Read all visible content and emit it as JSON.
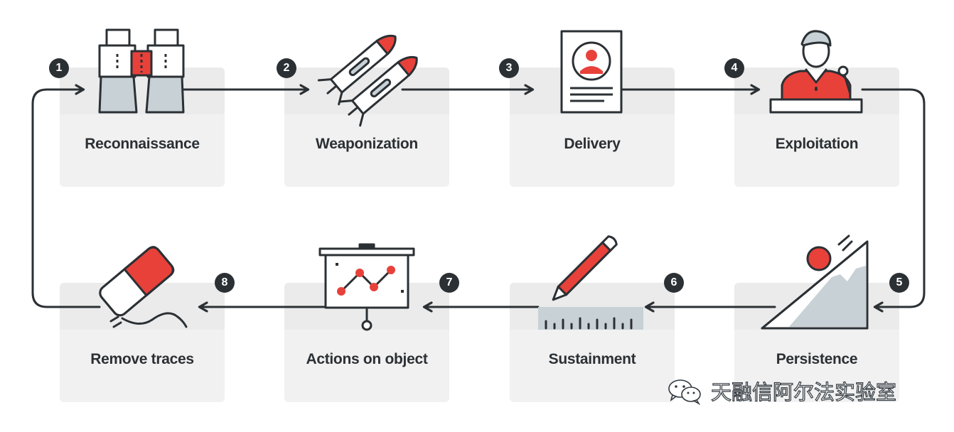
{
  "diagram": {
    "steps": [
      {
        "number": "1",
        "label": "Reconnaissance",
        "icon": "binoculars-icon"
      },
      {
        "number": "2",
        "label": "Weaponization",
        "icon": "missiles-icon"
      },
      {
        "number": "3",
        "label": "Delivery",
        "icon": "document-profile-icon"
      },
      {
        "number": "4",
        "label": "Exploitation",
        "icon": "speaker-podium-icon"
      },
      {
        "number": "5",
        "label": "Persistence",
        "icon": "boulder-slope-icon"
      },
      {
        "number": "6",
        "label": "Sustainment",
        "icon": "pencil-ruler-icon"
      },
      {
        "number": "7",
        "label": "Actions on object",
        "icon": "presentation-chart-icon"
      },
      {
        "number": "8",
        "label": "Remove traces",
        "icon": "eraser-icon"
      }
    ],
    "colors": {
      "accent": "#e8413a",
      "ink": "#2b3034",
      "card": "#f1f1f1",
      "steel": "#c7d1d6"
    }
  },
  "watermark": {
    "text": "天融信阿尔法实验室",
    "icon": "wechat-icon"
  }
}
